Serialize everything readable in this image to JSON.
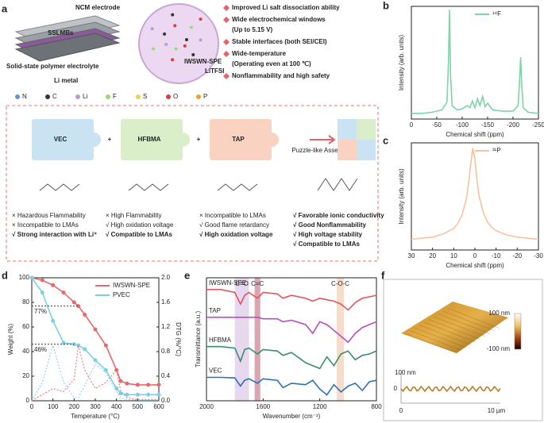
{
  "panel_labels": [
    "a",
    "b",
    "c",
    "d",
    "e",
    "f"
  ],
  "schematic": {
    "cell": {
      "electrode": "NCM electrode",
      "cell": "SSLMBs",
      "electrolyte": "Solid-state polymer electrolyte",
      "anode": "Li metal",
      "zoom": "IWSWN-SPE",
      "salt": "LiTFSI"
    },
    "bullets": [
      [
        "Improved Li salt dissociation ability"
      ],
      [
        "Wide electrochemical windows",
        "(Up to 5.15 V)"
      ],
      [
        "Stable interfaces (both SEI/CEI)"
      ],
      [
        "Wide-temperature",
        "(Operating even at 100 ℃)"
      ],
      [
        "Nonflammability and high safety"
      ]
    ],
    "elements": [
      {
        "name": "N",
        "color": "#6d8fd8"
      },
      {
        "name": "C",
        "color": "#333333"
      },
      {
        "name": "Li",
        "color": "#b89ad8"
      },
      {
        "name": "F",
        "color": "#9fd67a"
      },
      {
        "name": "S",
        "color": "#e7d35a"
      },
      {
        "name": "O",
        "color": "#e03b3b"
      },
      {
        "name": "P",
        "color": "#f0a030"
      }
    ],
    "pieces": [
      {
        "name": "VEC",
        "color": "#c9e3f3",
        "text": "#5a9cc9"
      },
      {
        "name": "HFBMA",
        "color": "#d9eec9",
        "text": "#7fae5a"
      },
      {
        "name": "TAP",
        "color": "#fad2c1",
        "text": "#d9845c"
      }
    ],
    "plus": "+",
    "assembly": "Puzzle-like Assembly",
    "properties": [
      [
        {
          "text": "× Hazardous Flammability",
          "color": "#444444"
        },
        {
          "text": "× Incompatible to LMAs",
          "color": "#444444"
        },
        {
          "text": "√ Strong interaction with Li⁺",
          "color": "#2a9fd6"
        }
      ],
      [
        {
          "text": "× High Flammability",
          "color": "#444444"
        },
        {
          "text": "√ High oxidation voltage",
          "color": "#7ab83a"
        },
        {
          "text": "√ Compatible to LMAs",
          "color": "#7ab83a"
        }
      ],
      [
        {
          "text": "× Incompatible to LMAs",
          "color": "#444444"
        },
        {
          "text": "√ Good flame retardancy",
          "color": "#e07a2a"
        },
        {
          "text": "√ High oxidation voltage",
          "color": "#e07a2a"
        }
      ],
      [
        {
          "text": "√ Favorable ionic conductivity",
          "color": "#e8737a"
        },
        {
          "text": "√ Good Nonflammability",
          "color": "#e8737a"
        },
        {
          "text": "√ High voltage stability",
          "color": "#e8737a"
        },
        {
          "text": "√ Compatible to LMAs",
          "color": "#e8737a"
        }
      ]
    ]
  },
  "chart_data": [
    {
      "type": "line",
      "xlabel": "Chemical shift (ppm)",
      "ylabel": "Intensity (arb. units)",
      "legend": "upper right",
      "xlim": [
        0,
        -250
      ],
      "xticks": [
        0,
        -50,
        -100,
        -150,
        -200,
        -250
      ],
      "ylim": [
        0,
        1
      ],
      "x": [
        0,
        -20,
        -40,
        -60,
        -70,
        -73,
        -75,
        -77,
        -80,
        -90,
        -100,
        -110,
        -115,
        -120,
        -125,
        -130,
        -135,
        -140,
        -145,
        -150,
        -160,
        -180,
        -200,
        -210,
        -213,
        -215,
        -217,
        -220,
        -230,
        -250
      ],
      "series": [
        {
          "name": "¹⁹F",
          "color": "#7fd3a6",
          "values": [
            0.05,
            0.05,
            0.06,
            0.08,
            0.15,
            0.5,
            0.97,
            0.4,
            0.12,
            0.08,
            0.09,
            0.12,
            0.1,
            0.16,
            0.1,
            0.18,
            0.12,
            0.2,
            0.11,
            0.14,
            0.08,
            0.07,
            0.07,
            0.12,
            0.35,
            0.55,
            0.3,
            0.1,
            0.06,
            0.05
          ]
        }
      ]
    },
    {
      "type": "line",
      "xlabel": "Chemical shift (ppm)",
      "ylabel": "Intensity (arb. units)",
      "legend": "upper right",
      "xlim": [
        30,
        -30
      ],
      "xticks": [
        30,
        20,
        10,
        0,
        -10,
        -20,
        -30
      ],
      "ylim": [
        0,
        1
      ],
      "x": [
        30,
        25,
        20,
        15,
        10,
        8,
        6,
        4,
        3,
        2,
        1,
        0,
        -1,
        -2,
        -4,
        -6,
        -8,
        -10,
        -15,
        -20,
        -25,
        -30
      ],
      "series": [
        {
          "name": "³¹P",
          "color": "#f7c2a0",
          "values": [
            0.1,
            0.11,
            0.12,
            0.15,
            0.2,
            0.25,
            0.33,
            0.48,
            0.62,
            0.8,
            0.95,
            0.85,
            0.65,
            0.5,
            0.35,
            0.26,
            0.21,
            0.18,
            0.14,
            0.12,
            0.11,
            0.1
          ]
        }
      ]
    },
    {
      "type": "line",
      "xlabel": "Temperature (°C)",
      "ylabel": "Weight (%)",
      "y2label": "DTG (%/°C)",
      "legend": "upper right",
      "xlim": [
        0,
        600
      ],
      "xticks": [
        0,
        100,
        200,
        300,
        400,
        500,
        600
      ],
      "ylim": [
        0,
        100
      ],
      "yticks": [
        0,
        20,
        40,
        60,
        80,
        100
      ],
      "y2lim": [
        0,
        2
      ],
      "y2ticks": [
        {
          "value": 0,
          "label": "0.0"
        },
        0.4,
        0.8,
        1.2,
        1.6,
        {
          "value": 2,
          "label": "2.0"
        }
      ],
      "x": [
        0,
        50,
        100,
        150,
        200,
        220,
        250,
        300,
        350,
        400,
        420,
        450,
        500,
        550,
        600
      ],
      "series": [
        {
          "name": "IWSWN-SPE",
          "color": "#e8696b",
          "values": [
            100,
            98,
            94,
            88,
            80,
            77,
            70,
            58,
            45,
            25,
            16,
            14,
            13,
            13,
            13
          ]
        },
        {
          "name": "PVEC",
          "color": "#7ecfe5",
          "values": [
            100,
            88,
            65,
            47,
            46,
            45,
            42,
            33,
            25,
            10,
            6,
            5,
            5,
            5,
            5
          ]
        },
        {
          "color": "#e8696b",
          "axis": "y2",
          "dash": true,
          "values": [
            0,
            0.1,
            0.2,
            0.15,
            0.35,
            0.9,
            0.5,
            0.2,
            0.3,
            0.5,
            0.15,
            0.05,
            0.02,
            0.02,
            0.02
          ]
        },
        {
          "color": "#7ecfe5",
          "axis": "y2",
          "dash": true,
          "values": [
            0,
            0.3,
            0.9,
            0.3,
            0.05,
            0.05,
            0.25,
            0.6,
            0.45,
            0.15,
            0.05,
            0.02,
            0.01,
            0.01,
            0.01
          ]
        }
      ],
      "annotations": [
        "77%",
        "46%"
      ]
    },
    {
      "type": "line",
      "xlabel": "Wavenumber (cm⁻¹)",
      "ylabel": "Transmittance (a.u.)",
      "legend": "inline",
      "xlim": [
        2000,
        800
      ],
      "xticks": [
        2000,
        1600,
        1200,
        800
      ],
      "ylim": [
        0,
        4.2
      ],
      "bands": [
        {
          "label": "C=O",
          "range": [
            1800,
            1700
          ],
          "color": "#e6d8ef"
        },
        {
          "label": "C=C",
          "range": [
            1660,
            1620
          ],
          "color": "#dca3b3"
        },
        {
          "label": "C-O-C",
          "range": [
            1080,
            1030
          ],
          "color": "#f6dccb"
        }
      ],
      "x": [
        2000,
        1900,
        1800,
        1760,
        1730,
        1700,
        1640,
        1600,
        1500,
        1460,
        1400,
        1300,
        1250,
        1200,
        1150,
        1100,
        1050,
        1000,
        950,
        900,
        850,
        800
      ],
      "series": [
        {
          "name": "IWSWN-SPE",
          "color": "#e0575c",
          "values": [
            3.8,
            3.8,
            3.7,
            3.3,
            3.6,
            3.7,
            3.5,
            3.7,
            3.65,
            3.5,
            3.6,
            3.5,
            3.4,
            3.5,
            3.45,
            3.4,
            3.3,
            3.1,
            3.35,
            3.5,
            3.55,
            3.6
          ]
        },
        {
          "name": "TAP",
          "color": "#b84fc0",
          "values": [
            2.85,
            2.85,
            2.85,
            2.85,
            2.85,
            2.85,
            2.85,
            2.8,
            2.8,
            2.7,
            2.75,
            2.6,
            2.3,
            2.7,
            2.6,
            2.4,
            2.2,
            2.0,
            2.3,
            2.5,
            2.6,
            2.7
          ]
        },
        {
          "name": "HFBMA",
          "color": "#3a8c6e",
          "values": [
            1.85,
            1.85,
            1.8,
            1.35,
            1.75,
            1.8,
            1.6,
            1.75,
            1.7,
            1.55,
            1.65,
            1.3,
            1.2,
            1.1,
            1.5,
            1.2,
            1.6,
            1.7,
            1.4,
            1.55,
            1.6,
            1.7
          ]
        },
        {
          "name": "VEC",
          "color": "#2f6fb8",
          "values": [
            0.8,
            0.8,
            0.78,
            0.5,
            0.7,
            0.75,
            0.6,
            0.75,
            0.7,
            0.45,
            0.6,
            0.55,
            0.7,
            0.4,
            0.2,
            0.55,
            0.3,
            0.5,
            0.6,
            0.35,
            0.65,
            0.7
          ]
        }
      ]
    }
  ],
  "afm": {
    "scale_max": "100 nm",
    "scale_min": "-100 nm",
    "profile_top": "100 nm",
    "profile_zero": "0",
    "x_start": "0",
    "x_end": "10 µm"
  }
}
